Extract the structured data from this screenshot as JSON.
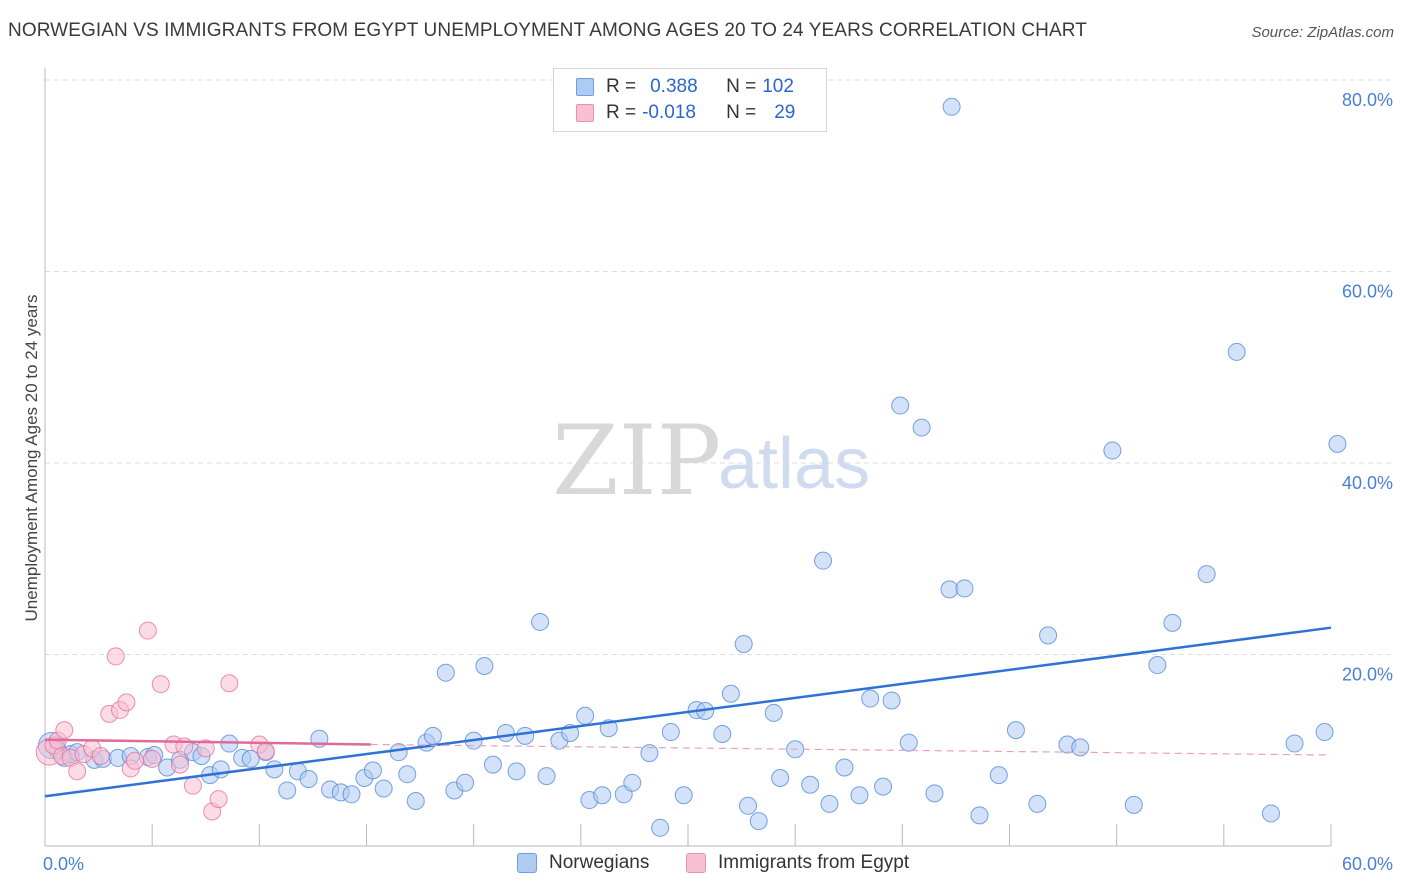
{
  "header": {
    "title": "NORWEGIAN VS IMMIGRANTS FROM EGYPT UNEMPLOYMENT AMONG AGES 20 TO 24 YEARS CORRELATION CHART",
    "source": "Source: ZipAtlas.com"
  },
  "watermark": {
    "zip": "ZIP",
    "atlas": "atlas"
  },
  "legend": {
    "rows": [
      {
        "r_label": "R =",
        "r_value": "0.388",
        "n_label": "N =",
        "n_value": "102",
        "color": "#aecbf2"
      },
      {
        "r_label": "R =",
        "r_value": "-0.018",
        "n_label": "N =",
        "n_value": "29",
        "color": "#f8c0d2"
      }
    ]
  },
  "bottom_legend": {
    "series1": "Norwegians",
    "series2": "Immigrants from Egypt"
  },
  "chart_data": {
    "type": "scatter",
    "title": "NORWEGIAN VS IMMIGRANTS FROM EGYPT UNEMPLOYMENT AMONG AGES 20 TO 24 YEARS CORRELATION CHART",
    "xlabel": "",
    "ylabel": "Unemployment Among Ages 20 to 24 years",
    "xlim": [
      0,
      60
    ],
    "ylim": [
      0,
      80
    ],
    "x_tick_labels": [
      "0.0%",
      "60.0%"
    ],
    "y_ticks": [
      20,
      40,
      60,
      80
    ],
    "y_tick_labels": [
      "20.0%",
      "40.0%",
      "60.0%",
      "80.0%"
    ],
    "grid": true,
    "legend_position": "top-center",
    "series": [
      {
        "name": "Norwegians",
        "color": "#4a86d8",
        "fill": "#aecbf2",
        "trend": {
          "x": [
            0,
            60
          ],
          "y": [
            5.2,
            22.8
          ],
          "style": "solid"
        },
        "points": [
          [
            0.3,
            10.5
          ],
          [
            0.6,
            10.0
          ],
          [
            0.9,
            9.2
          ],
          [
            1.2,
            9.6
          ],
          [
            1.5,
            9.8
          ],
          [
            2.3,
            9.0
          ],
          [
            2.7,
            9.1
          ],
          [
            3.4,
            9.2
          ],
          [
            4.0,
            9.4
          ],
          [
            4.8,
            9.3
          ],
          [
            5.1,
            9.5
          ],
          [
            5.7,
            8.2
          ],
          [
            6.3,
            9.0
          ],
          [
            6.9,
            9.8
          ],
          [
            7.3,
            9.4
          ],
          [
            7.7,
            7.4
          ],
          [
            8.2,
            8.0
          ],
          [
            8.6,
            10.7
          ],
          [
            9.2,
            9.2
          ],
          [
            9.6,
            9.1
          ],
          [
            10.3,
            9.8
          ],
          [
            10.7,
            8.0
          ],
          [
            11.3,
            5.8
          ],
          [
            11.8,
            7.8
          ],
          [
            12.3,
            7.0
          ],
          [
            12.8,
            11.2
          ],
          [
            13.3,
            5.9
          ],
          [
            13.8,
            5.6
          ],
          [
            14.3,
            5.4
          ],
          [
            14.9,
            7.1
          ],
          [
            15.3,
            7.9
          ],
          [
            15.8,
            6.0
          ],
          [
            16.5,
            9.8
          ],
          [
            16.9,
            7.5
          ],
          [
            17.3,
            4.7
          ],
          [
            17.8,
            10.8
          ],
          [
            18.1,
            11.5
          ],
          [
            18.7,
            18.1
          ],
          [
            19.1,
            5.8
          ],
          [
            19.6,
            6.6
          ],
          [
            20.0,
            11.0
          ],
          [
            20.5,
            18.8
          ],
          [
            20.9,
            8.5
          ],
          [
            21.5,
            11.8
          ],
          [
            22.0,
            7.8
          ],
          [
            22.4,
            11.5
          ],
          [
            23.1,
            23.4
          ],
          [
            23.4,
            7.3
          ],
          [
            24.0,
            11.0
          ],
          [
            24.5,
            11.8
          ],
          [
            25.2,
            13.6
          ],
          [
            25.4,
            4.8
          ],
          [
            26.0,
            5.3
          ],
          [
            26.3,
            12.3
          ],
          [
            27.0,
            5.4
          ],
          [
            27.4,
            6.6
          ],
          [
            28.2,
            9.7
          ],
          [
            28.7,
            1.9
          ],
          [
            29.2,
            11.9
          ],
          [
            29.8,
            5.3
          ],
          [
            30.4,
            14.2
          ],
          [
            30.8,
            14.1
          ],
          [
            31.6,
            11.7
          ],
          [
            32.0,
            15.9
          ],
          [
            32.6,
            21.1
          ],
          [
            32.8,
            4.2
          ],
          [
            33.3,
            2.6
          ],
          [
            34.0,
            13.9
          ],
          [
            34.3,
            7.1
          ],
          [
            35.0,
            10.1
          ],
          [
            35.7,
            6.4
          ],
          [
            36.3,
            29.8
          ],
          [
            36.6,
            4.4
          ],
          [
            37.3,
            8.2
          ],
          [
            38.0,
            5.3
          ],
          [
            38.5,
            15.4
          ],
          [
            39.1,
            6.2
          ],
          [
            39.5,
            15.2
          ],
          [
            39.9,
            46.0
          ],
          [
            40.3,
            10.8
          ],
          [
            40.9,
            43.7
          ],
          [
            41.5,
            5.5
          ],
          [
            42.2,
            26.8
          ],
          [
            42.9,
            26.9
          ],
          [
            42.3,
            77.2
          ],
          [
            43.6,
            3.2
          ],
          [
            44.5,
            7.4
          ],
          [
            45.3,
            12.1
          ],
          [
            46.3,
            4.4
          ],
          [
            46.8,
            22.0
          ],
          [
            47.7,
            10.6
          ],
          [
            48.3,
            10.3
          ],
          [
            49.8,
            41.3
          ],
          [
            50.8,
            4.3
          ],
          [
            51.9,
            18.9
          ],
          [
            52.6,
            23.3
          ],
          [
            54.2,
            28.4
          ],
          [
            55.6,
            51.6
          ],
          [
            57.2,
            3.4
          ],
          [
            58.3,
            10.7
          ],
          [
            59.7,
            11.9
          ],
          [
            60.3,
            42.0
          ]
        ]
      },
      {
        "name": "Immigrants from Egypt",
        "color": "#e86a98",
        "fill": "#f8c0d2",
        "trend": {
          "x": [
            0,
            15.2
          ],
          "y": [
            11.1,
            10.6
          ],
          "style": "solid",
          "dashed_extension_to": [
            60,
            9.5
          ]
        },
        "points": [
          [
            0.2,
            9.8
          ],
          [
            0.4,
            10.5
          ],
          [
            0.6,
            11.0
          ],
          [
            0.8,
            9.4
          ],
          [
            0.9,
            12.1
          ],
          [
            1.2,
            9.2
          ],
          [
            1.5,
            7.8
          ],
          [
            1.8,
            9.6
          ],
          [
            2.2,
            10.2
          ],
          [
            2.6,
            9.4
          ],
          [
            3.0,
            13.8
          ],
          [
            3.3,
            19.8
          ],
          [
            3.5,
            14.2
          ],
          [
            3.8,
            15.0
          ],
          [
            4.0,
            8.1
          ],
          [
            4.2,
            8.9
          ],
          [
            4.8,
            22.5
          ],
          [
            5.0,
            9.1
          ],
          [
            5.4,
            16.9
          ],
          [
            6.0,
            10.6
          ],
          [
            6.3,
            8.5
          ],
          [
            6.5,
            10.4
          ],
          [
            6.9,
            6.3
          ],
          [
            7.5,
            10.2
          ],
          [
            7.8,
            3.6
          ],
          [
            8.1,
            4.9
          ],
          [
            8.6,
            17.0
          ],
          [
            10.0,
            10.6
          ],
          [
            10.3,
            9.9
          ]
        ]
      }
    ]
  }
}
